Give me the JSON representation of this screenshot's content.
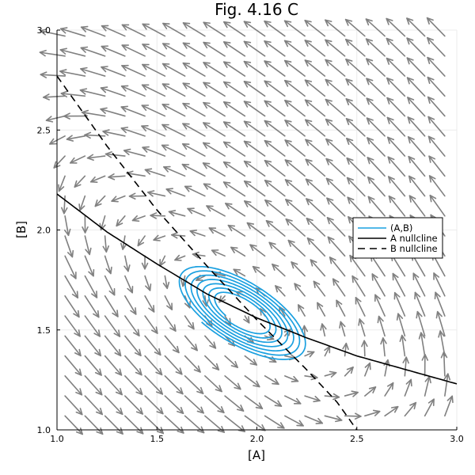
{
  "chart_data": {
    "type": "line",
    "title": "Fig. 4.16 C",
    "xlabel": "[A]",
    "ylabel": "[B]",
    "xlim": [
      1.0,
      3.0
    ],
    "ylim": [
      1.0,
      3.0
    ],
    "xticks": [
      "1.0",
      "1.5",
      "2.0",
      "2.5",
      "3.0"
    ],
    "yticks": [
      "1.0",
      "1.5",
      "2.0",
      "2.5",
      "3.0"
    ],
    "grid": true,
    "legend_position": "right-middle",
    "legend": [
      {
        "label": "(A,B)",
        "style": "solid",
        "color": "#1aa0e0"
      },
      {
        "label": "A nullcline",
        "style": "solid",
        "color": "#000000"
      },
      {
        "label": "B nullcline",
        "style": "dashed",
        "color": "#000000"
      }
    ],
    "series": [
      {
        "name": "A nullcline",
        "x": [
          1.0,
          1.25,
          1.5,
          1.75,
          2.0,
          2.25,
          2.5,
          2.75,
          3.0
        ],
        "y": [
          2.18,
          1.99,
          1.83,
          1.68,
          1.56,
          1.46,
          1.37,
          1.3,
          1.23
        ]
      },
      {
        "name": "B nullcline",
        "x": [
          1.0,
          1.25,
          1.5,
          1.75,
          2.0,
          2.25,
          2.4,
          2.5
        ],
        "y": [
          2.77,
          2.42,
          2.1,
          1.82,
          1.55,
          1.3,
          1.14,
          1.0
        ]
      },
      {
        "name": "(A,B)",
        "description": "spiral trajectory winding inward toward fixed point",
        "center": [
          1.92,
          1.59
        ],
        "outer_extent_x": [
          1.55,
          2.2
        ],
        "outer_extent_y": [
          1.42,
          1.85
        ]
      }
    ],
    "vector_field": {
      "grid_x_start": 1.05,
      "grid_y_start": 1.05,
      "step": 0.1,
      "count": 20,
      "color": "#808080",
      "fixed_point": [
        1.92,
        1.59
      ]
    }
  },
  "colors": {
    "trajectory": "#1aa0e0",
    "arrow": "#808080",
    "nullcline": "#000000",
    "grid": "#ebebeb"
  }
}
